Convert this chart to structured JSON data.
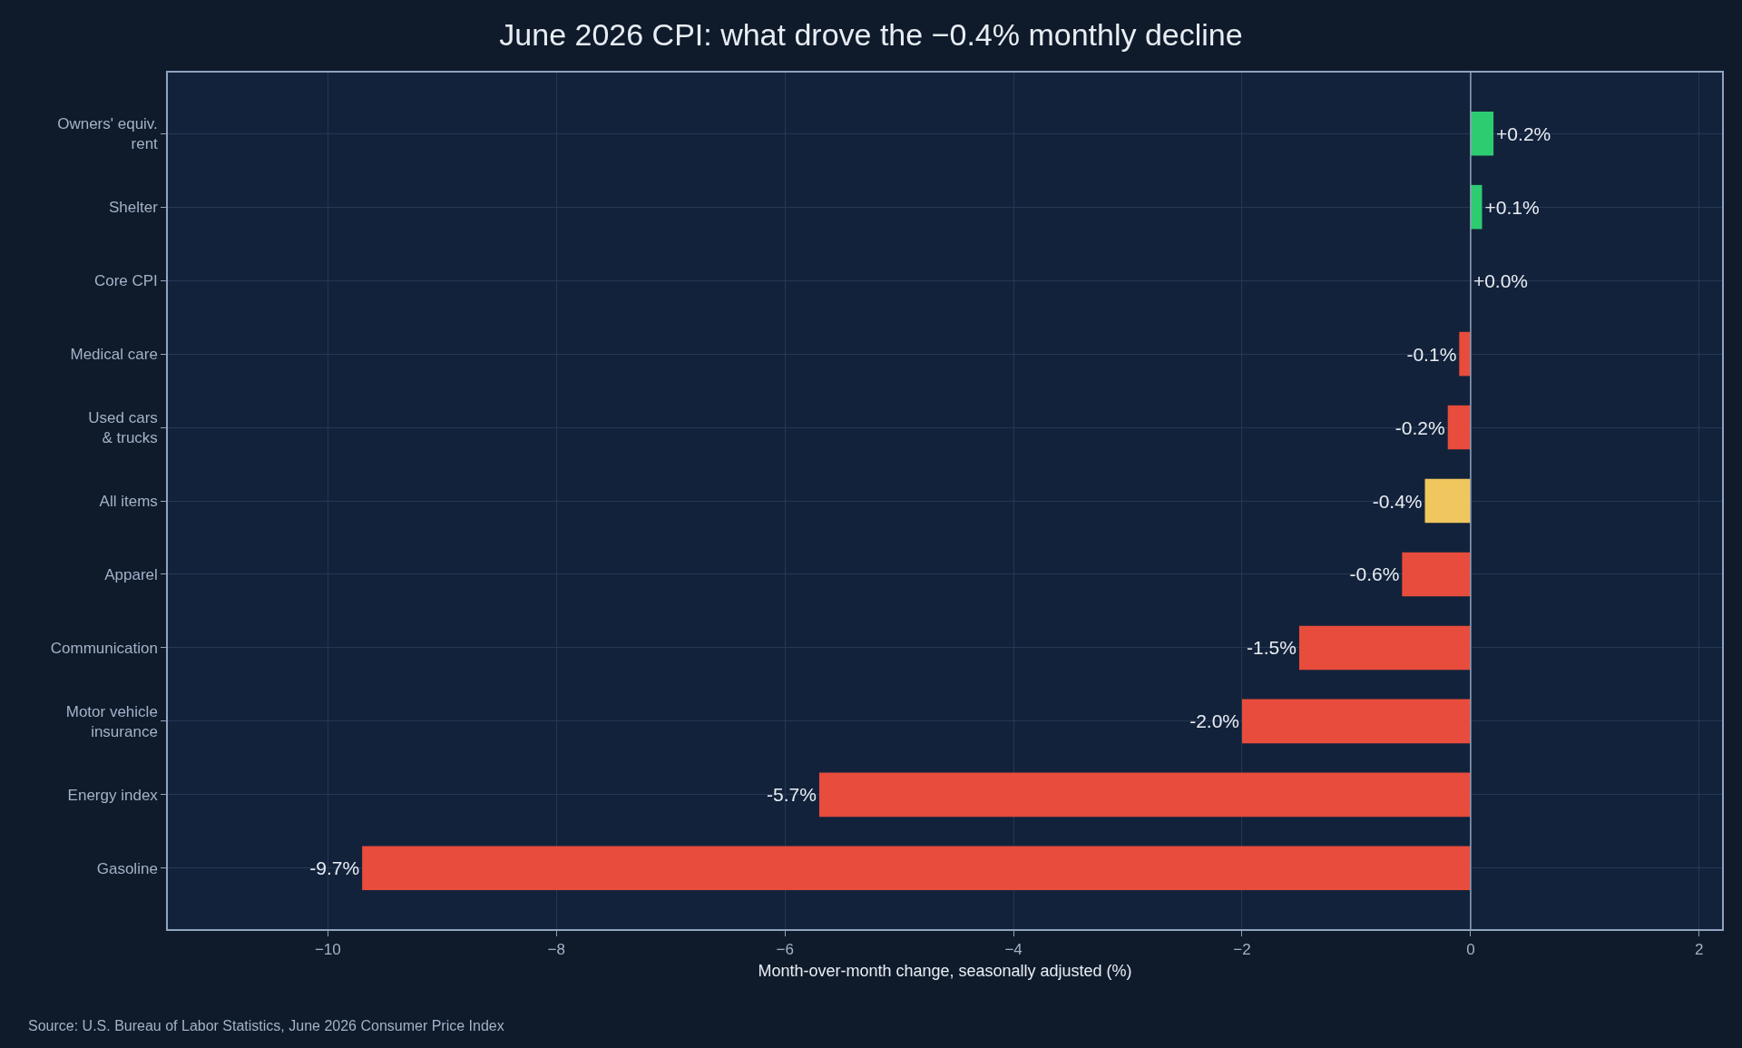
{
  "chart_data": {
    "type": "bar",
    "orientation": "horizontal",
    "title": "June 2026 CPI: what drove the −0.4% monthly decline",
    "xlabel": "Month-over-month change, seasonally adjusted (%)",
    "categories": [
      "Owners' equiv.\nrent",
      "Shelter",
      "Core CPI",
      "Medical care",
      "Used cars\n& trucks",
      "All items",
      "Apparel",
      "Communication",
      "Motor vehicle\ninsurance",
      "Energy index",
      "Gasoline"
    ],
    "values": [
      0.2,
      0.1,
      0.0,
      -0.1,
      -0.2,
      -0.4,
      -0.6,
      -1.5,
      -2.0,
      -5.7,
      -9.7
    ],
    "colors": [
      "#2ecc71",
      "#2ecc71",
      "#2ecc71",
      "#e74c3c",
      "#e74c3c",
      "#f0c75e",
      "#e74c3c",
      "#e74c3c",
      "#e74c3c",
      "#e74c3c",
      "#e74c3c"
    ],
    "value_labels": [
      "+0.2%",
      "+0.1%",
      "+0.0%",
      "-0.1%",
      "-0.2%",
      "-0.4%",
      "-0.6%",
      "-1.5%",
      "-2.0%",
      "-5.7%",
      "-9.7%"
    ],
    "xlim": [
      -11.4,
      2.2
    ],
    "xticks": [
      {
        "value": -10,
        "label": "−10"
      },
      {
        "value": -8,
        "label": "−8"
      },
      {
        "value": -6,
        "label": "−6"
      },
      {
        "value": -4,
        "label": "−4"
      },
      {
        "value": -2,
        "label": "−2"
      },
      0,
      2
    ],
    "grid": true,
    "ref_lines": [
      {
        "axis": "x",
        "value": 0,
        "color": "#8fa3bf"
      }
    ],
    "annotations": [
      "Source: U.S. Bureau of Labor Statistics, June 2026 Consumer Price Index"
    ]
  }
}
